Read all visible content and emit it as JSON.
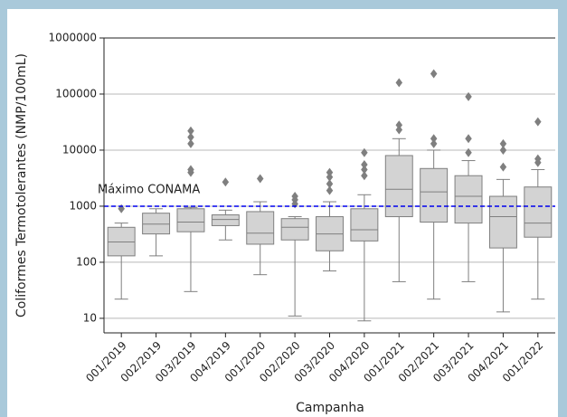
{
  "chart_data": {
    "type": "box",
    "xlabel": "Campanha",
    "ylabel": "Coliformes Termotolerantes (NMP/100mL)",
    "categories": [
      "001/2019",
      "002/2019",
      "003/2019",
      "004/2019",
      "001/2020",
      "002/2020",
      "003/2020",
      "004/2020",
      "001/2021",
      "002/2021",
      "003/2021",
      "004/2021",
      "001/2022"
    ],
    "whisker_low": [
      22,
      130,
      30,
      250,
      60,
      11,
      70,
      9,
      45,
      22,
      45,
      13,
      22
    ],
    "q1": [
      130,
      320,
      350,
      450,
      210,
      250,
      160,
      240,
      650,
      520,
      500,
      180,
      280
    ],
    "median": [
      230,
      480,
      520,
      580,
      330,
      420,
      320,
      380,
      2000,
      1800,
      1500,
      650,
      500
    ],
    "q3": [
      420,
      750,
      900,
      700,
      800,
      600,
      650,
      900,
      8000,
      4700,
      3500,
      1500,
      2200
    ],
    "whisker_high": [
      500,
      900,
      950,
      850,
      1200,
      650,
      1200,
      1600,
      16000,
      10000,
      6500,
      3000,
      4500
    ],
    "outliers": [
      [
        900
      ],
      [],
      [
        4000,
        4500,
        13000,
        17000,
        22000
      ],
      [
        2700
      ],
      [
        3100
      ],
      [
        1100,
        1300,
        1500
      ],
      [
        1900,
        2500,
        3300,
        4000
      ],
      [
        3500,
        4500,
        5500,
        9000
      ],
      [
        23000,
        28000,
        160000
      ],
      [
        13000,
        16000,
        230000
      ],
      [
        9000,
        16000,
        90000
      ],
      [
        5000,
        10000,
        13000
      ],
      [
        6000,
        7000,
        32000
      ]
    ],
    "color": "#d3d3d3",
    "edge_color": "#7f7f7f",
    "yscale": "log",
    "ylim": [
      5.5,
      1000000
    ],
    "yticks": [
      10,
      100,
      1000,
      10000,
      100000,
      1000000
    ],
    "grid": true,
    "reference_line": {
      "value": 1000,
      "label": "Máximo CONAMA",
      "color": "#0000ee"
    }
  }
}
